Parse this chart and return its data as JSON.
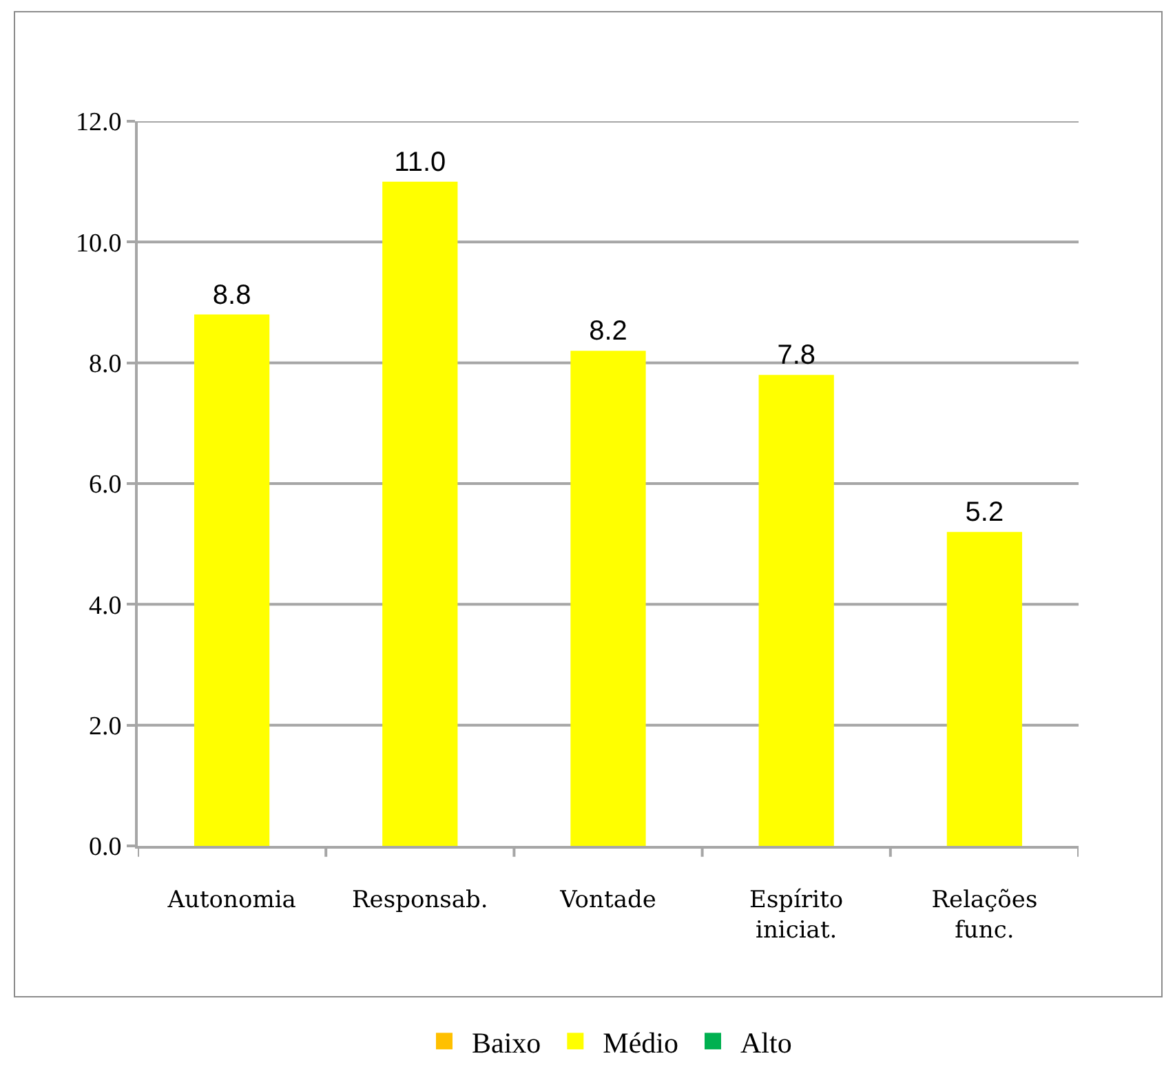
{
  "chart_data": {
    "type": "bar",
    "categories": [
      "Autonomia",
      "Responsab.",
      "Vontade",
      "Espírito\niniciat.",
      "Relações\nfunc."
    ],
    "series": [
      {
        "name": "Baixo",
        "color": "#ffc000",
        "values": [
          null,
          null,
          null,
          null,
          null
        ]
      },
      {
        "name": "Médio",
        "color": "#ffff00",
        "values": [
          8.8,
          11.0,
          8.2,
          7.8,
          5.2
        ],
        "value_labels": [
          "8.8",
          "11.0",
          "8.2",
          "7.8",
          "5.2"
        ]
      },
      {
        "name": "Alto",
        "color": "#00b050",
        "values": [
          null,
          null,
          null,
          null,
          null
        ]
      }
    ],
    "ylim": [
      0,
      12
    ],
    "yticks": [
      {
        "value": 0,
        "label": "0.0"
      },
      {
        "value": 2,
        "label": "2.0"
      },
      {
        "value": 4,
        "label": "4.0"
      },
      {
        "value": 6,
        "label": "6.0"
      },
      {
        "value": 8,
        "label": "8.0"
      },
      {
        "value": 10,
        "label": "10.0"
      },
      {
        "value": 12,
        "label": "12.0"
      }
    ],
    "grid": "y",
    "legend": "bottom"
  }
}
